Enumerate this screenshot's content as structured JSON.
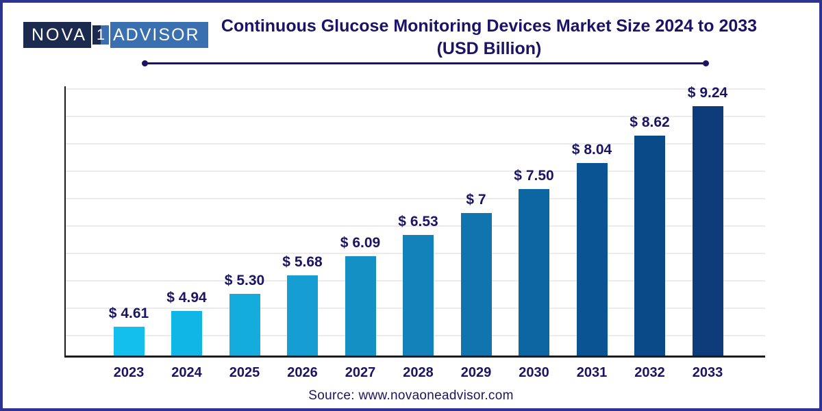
{
  "logo": {
    "text_left": "NOVA",
    "text_one": "1",
    "text_right": "ADVISOR"
  },
  "header": {
    "title_line1": "Continuous Glucose Monitoring Devices Market Size 2024 to 2033",
    "title_line2": "(USD Billion)"
  },
  "footer": {
    "source": "Source: www.novaoneadvisor.com"
  },
  "colors": {
    "accent_navy": "#1B1464",
    "page_border": "#2E3492",
    "logo_dark": "#1B2A4E",
    "logo_blue": "#3A6FB0",
    "axis": "#1C1C1C",
    "gridline": "#EBEBEB"
  },
  "chart_data": {
    "type": "bar",
    "title": "Continuous Glucose Monitoring Devices Market Size 2024 to 2033 (USD Billion)",
    "categories": [
      "2023",
      "2024",
      "2025",
      "2026",
      "2027",
      "2028",
      "2029",
      "2030",
      "2031",
      "2032",
      "2033"
    ],
    "values": [
      4.61,
      4.94,
      5.3,
      5.68,
      6.09,
      6.53,
      7.0,
      7.5,
      8.04,
      8.62,
      9.24
    ],
    "value_labels": [
      "$ 4.61",
      "$ 4.94",
      "$ 5.30",
      "$ 5.68",
      "$ 6.09",
      "$ 6.53",
      "$ 7",
      "$ 7.50",
      "$ 8.04",
      "$ 8.62",
      "$ 9.24"
    ],
    "bar_colors": [
      "#13BFEC",
      "#10B7E6",
      "#14ACDD",
      "#169DD1",
      "#1590C5",
      "#1482BA",
      "#1174AE",
      "#0B66A1",
      "#0A5494",
      "#0B4A88",
      "#0E3C7B"
    ],
    "xlabel": "",
    "ylabel": "",
    "ylim": [
      4.0,
      9.7
    ],
    "grid": true,
    "legend": false,
    "unit": "USD Billion",
    "source": "www.novaoneadvisor.com"
  }
}
